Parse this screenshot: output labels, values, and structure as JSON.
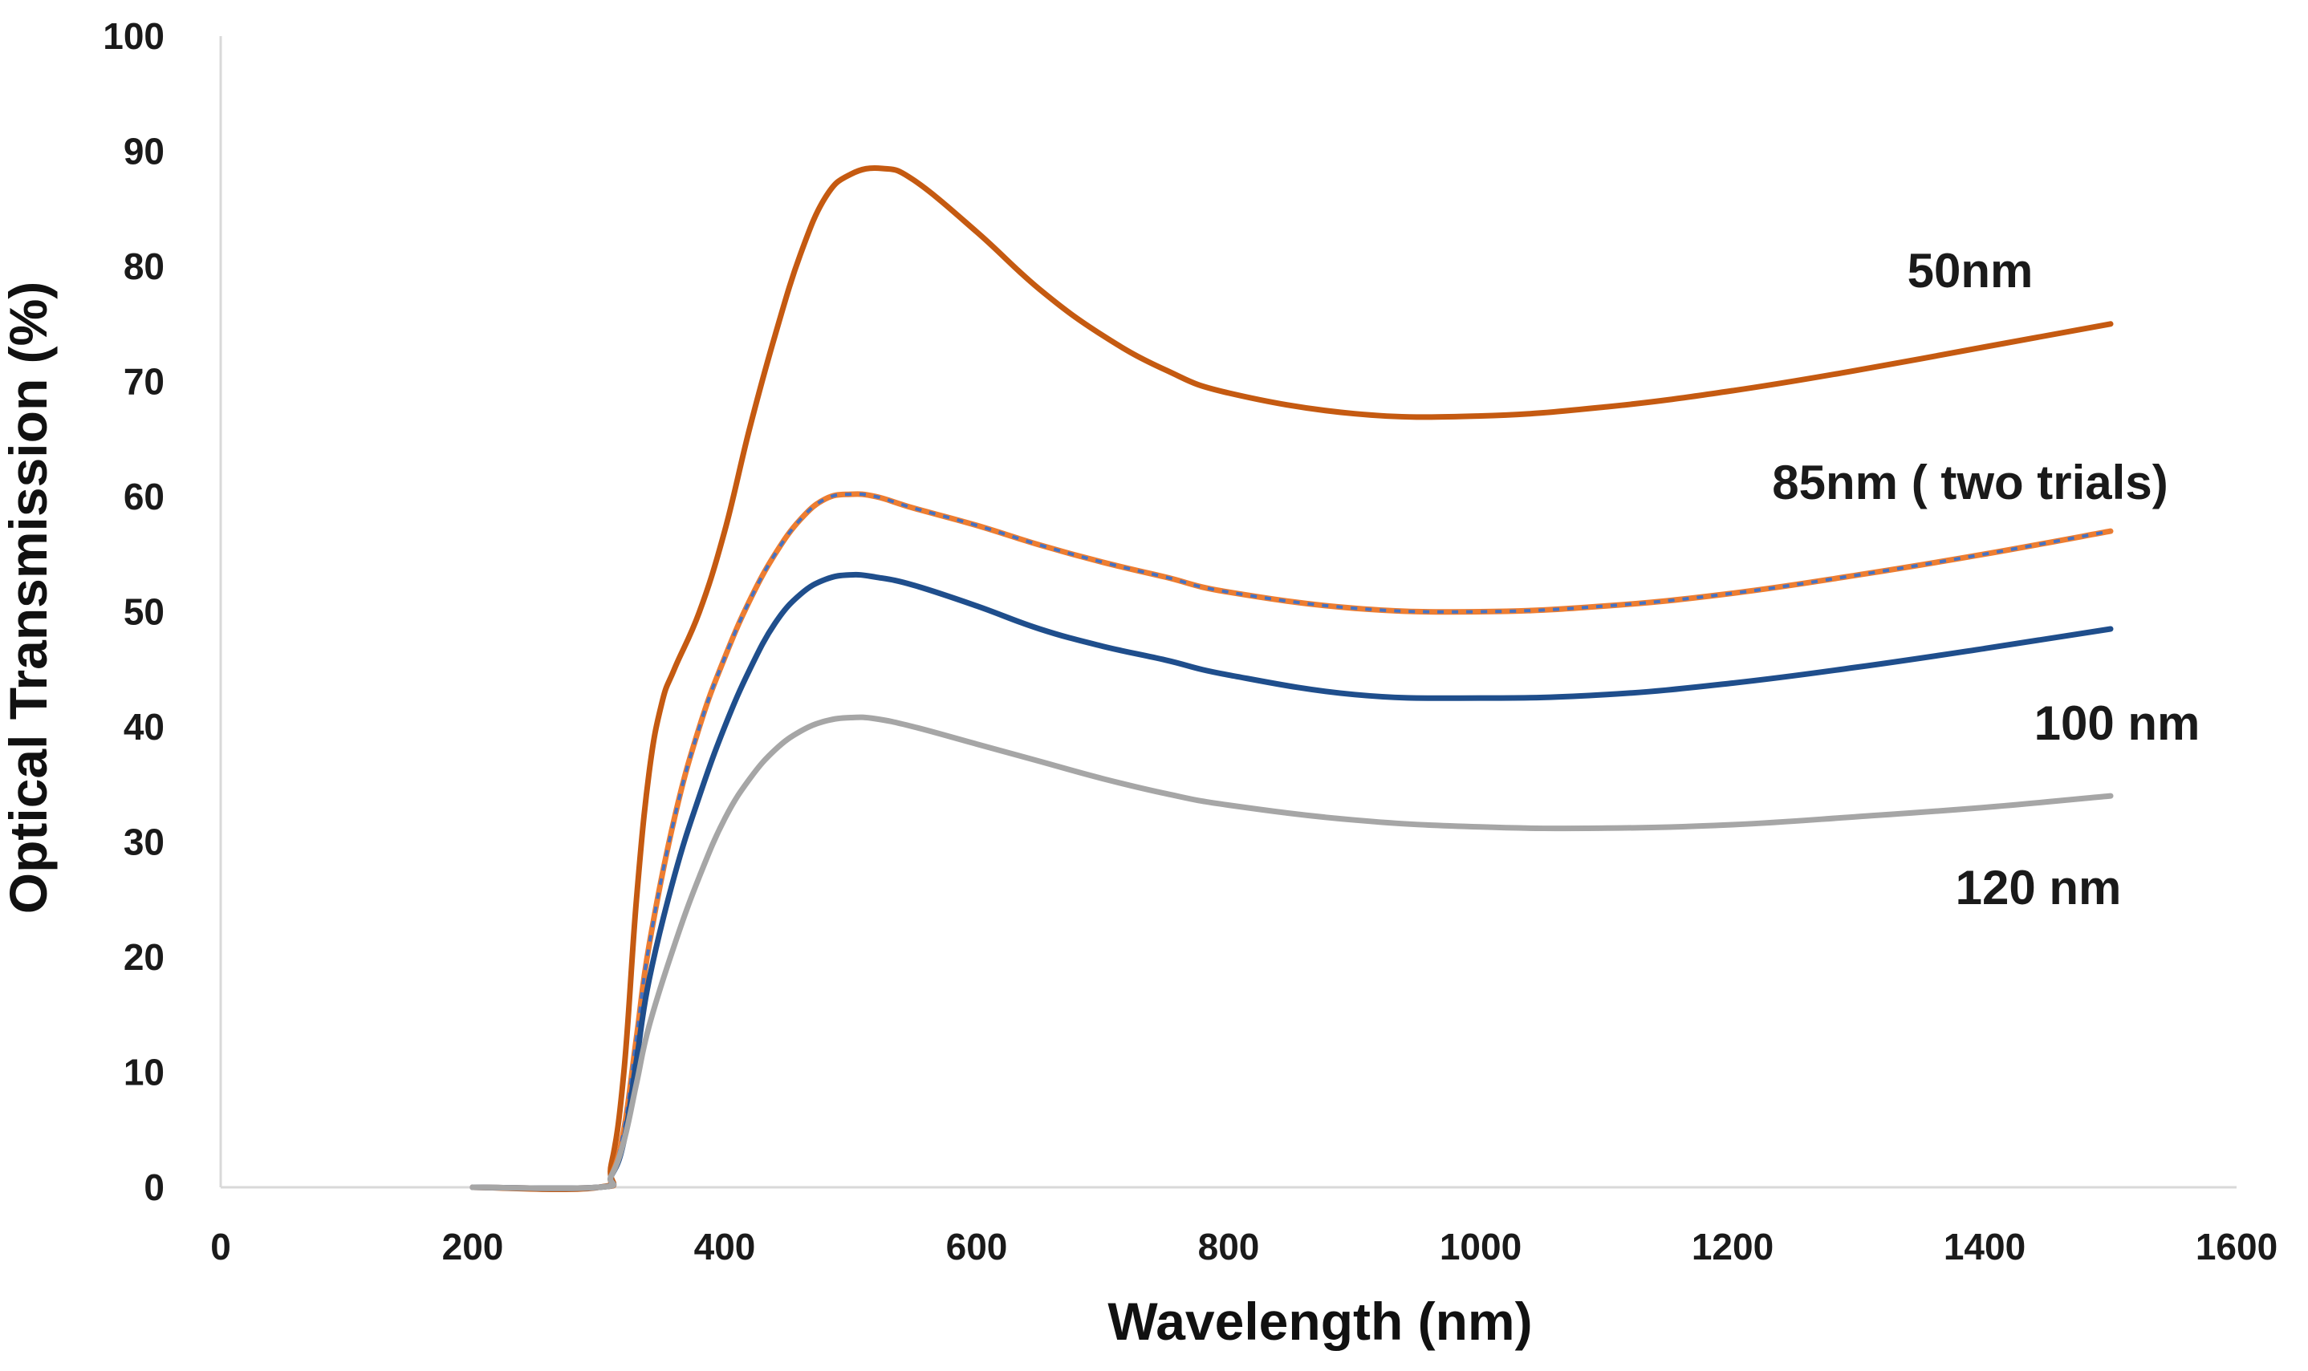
{
  "chart_data": {
    "type": "line",
    "xlabel": "Wavelength (nm)",
    "ylabel": "Optical Transmission (%)",
    "xlim": [
      0,
      1600
    ],
    "ylim": [
      0,
      100
    ],
    "xticks": [
      0,
      200,
      400,
      600,
      800,
      1000,
      1200,
      1400,
      1600
    ],
    "yticks": [
      0,
      10,
      20,
      30,
      40,
      50,
      60,
      70,
      80,
      90,
      100
    ],
    "grid": false,
    "series": [
      {
        "name": "50nm",
        "label": "50nm",
        "color": "#c55a11",
        "style": "solid",
        "points": [
          [
            200,
            0
          ],
          [
            300,
            0
          ],
          [
            310,
            2
          ],
          [
            320,
            10
          ],
          [
            330,
            25
          ],
          [
            340,
            36
          ],
          [
            350,
            42
          ],
          [
            360,
            45
          ],
          [
            380,
            50
          ],
          [
            400,
            57
          ],
          [
            420,
            66
          ],
          [
            440,
            74
          ],
          [
            460,
            81
          ],
          [
            480,
            86
          ],
          [
            500,
            88
          ],
          [
            525,
            88.5
          ],
          [
            550,
            87.5
          ],
          [
            600,
            83
          ],
          [
            650,
            78
          ],
          [
            700,
            74
          ],
          [
            750,
            71
          ],
          [
            800,
            69
          ],
          [
            900,
            67.2
          ],
          [
            1000,
            67
          ],
          [
            1100,
            67.8
          ],
          [
            1200,
            69.2
          ],
          [
            1300,
            71
          ],
          [
            1400,
            73
          ],
          [
            1500,
            75
          ]
        ]
      },
      {
        "name": "85nm ( two  trials)",
        "label": "85nm ( two  trials)",
        "color": "#ed7d31",
        "dash_color": "#4472c4",
        "style": "dual-dashed",
        "points": [
          [
            200,
            0
          ],
          [
            300,
            0
          ],
          [
            310,
            1
          ],
          [
            320,
            5
          ],
          [
            330,
            13
          ],
          [
            340,
            21
          ],
          [
            360,
            32
          ],
          [
            380,
            40
          ],
          [
            400,
            46
          ],
          [
            420,
            51
          ],
          [
            440,
            55
          ],
          [
            460,
            58
          ],
          [
            480,
            59.8
          ],
          [
            500,
            60.2
          ],
          [
            520,
            60
          ],
          [
            550,
            59
          ],
          [
            600,
            57.5
          ],
          [
            650,
            55.8
          ],
          [
            700,
            54.3
          ],
          [
            750,
            53
          ],
          [
            800,
            51.7
          ],
          [
            900,
            50.3
          ],
          [
            1000,
            50
          ],
          [
            1100,
            50.5
          ],
          [
            1200,
            51.6
          ],
          [
            1300,
            53.2
          ],
          [
            1400,
            55
          ],
          [
            1500,
            57
          ]
        ]
      },
      {
        "name": "100 nm",
        "label": "100 nm",
        "color": "#1f4e8c",
        "style": "solid",
        "points": [
          [
            200,
            0
          ],
          [
            300,
            0
          ],
          [
            310,
            1
          ],
          [
            320,
            4
          ],
          [
            330,
            11
          ],
          [
            340,
            18
          ],
          [
            360,
            27
          ],
          [
            380,
            34
          ],
          [
            400,
            40
          ],
          [
            420,
            45
          ],
          [
            440,
            49
          ],
          [
            460,
            51.5
          ],
          [
            480,
            52.8
          ],
          [
            500,
            53.2
          ],
          [
            520,
            53
          ],
          [
            550,
            52.3
          ],
          [
            600,
            50.5
          ],
          [
            650,
            48.5
          ],
          [
            700,
            47
          ],
          [
            750,
            45.8
          ],
          [
            800,
            44.5
          ],
          [
            900,
            42.8
          ],
          [
            1000,
            42.5
          ],
          [
            1100,
            42.8
          ],
          [
            1200,
            43.8
          ],
          [
            1300,
            45.2
          ],
          [
            1400,
            46.8
          ],
          [
            1500,
            48.5
          ]
        ]
      },
      {
        "name": "120 nm",
        "label": "120 nm",
        "color": "#a6a6a6",
        "style": "solid",
        "points": [
          [
            200,
            0
          ],
          [
            300,
            0
          ],
          [
            310,
            1
          ],
          [
            320,
            4
          ],
          [
            330,
            9
          ],
          [
            340,
            14
          ],
          [
            360,
            21
          ],
          [
            380,
            27
          ],
          [
            400,
            32
          ],
          [
            420,
            35.5
          ],
          [
            440,
            38
          ],
          [
            460,
            39.6
          ],
          [
            480,
            40.5
          ],
          [
            500,
            40.8
          ],
          [
            520,
            40.7
          ],
          [
            550,
            40
          ],
          [
            600,
            38.5
          ],
          [
            650,
            37
          ],
          [
            700,
            35.5
          ],
          [
            750,
            34.2
          ],
          [
            800,
            33.2
          ],
          [
            900,
            31.9
          ],
          [
            1000,
            31.3
          ],
          [
            1100,
            31.2
          ],
          [
            1200,
            31.5
          ],
          [
            1300,
            32.2
          ],
          [
            1400,
            33
          ],
          [
            1500,
            34
          ]
        ]
      }
    ]
  }
}
